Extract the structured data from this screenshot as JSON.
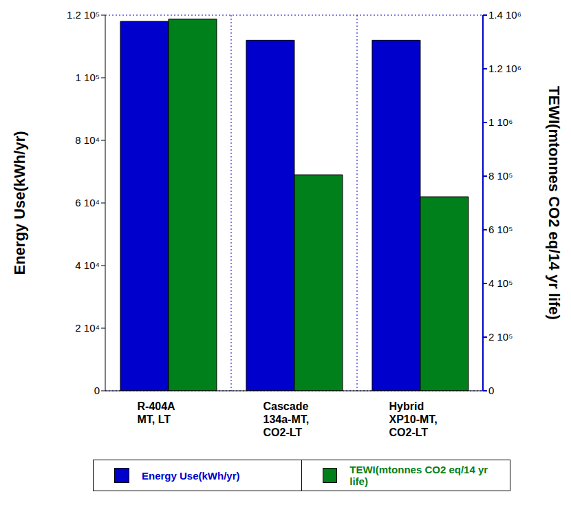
{
  "chart_data": {
    "type": "bar",
    "categories": [
      "R-404A\nMT, LT",
      "Cascade\n134a-MT,\nCO2-LT",
      "Hybrid\nXP10-MT,\nCO2-LT"
    ],
    "series": [
      {
        "name": "Energy Use(kWh/yr)",
        "color": "#0000cc",
        "values": [
          118000,
          112000,
          112000
        ]
      },
      {
        "name": "TEWI(mtonnes CO2 eq/14 yr life)",
        "color": "#00801a",
        "values": [
          1385000,
          805000,
          723000
        ],
        "axis": "y2"
      }
    ],
    "y_label": "Energy Use(kWh/yr)",
    "y2_label": "TEWI(mtonnes CO2 eq/14 yr life)",
    "ylim": [
      0,
      120000
    ],
    "yticks": [
      0,
      {
        "value": 20000,
        "label": "2 10⁴"
      },
      {
        "value": 40000,
        "label": "4 10⁴"
      },
      {
        "value": 60000,
        "label": "6 10⁴"
      },
      {
        "value": 80000,
        "label": "8 10⁴"
      },
      {
        "value": 100000,
        "label": "1 10⁵"
      },
      {
        "value": 120000,
        "label": "1.2 10⁵"
      }
    ],
    "y2lim": [
      0,
      1400000
    ],
    "y2ticks": [
      0,
      {
        "value": 200000,
        "label": "2 10⁵"
      },
      {
        "value": 400000,
        "label": "4 10⁵"
      },
      {
        "value": 600000,
        "label": "6 10⁵"
      },
      {
        "value": 800000,
        "label": "8 10⁵"
      },
      {
        "value": 1000000,
        "label": "1 10⁶"
      },
      {
        "value": 1200000,
        "label": "1.2 10⁶"
      },
      {
        "value": 1400000,
        "label": "1.4 10⁶"
      }
    ],
    "grid": true,
    "legend": "bottom"
  }
}
